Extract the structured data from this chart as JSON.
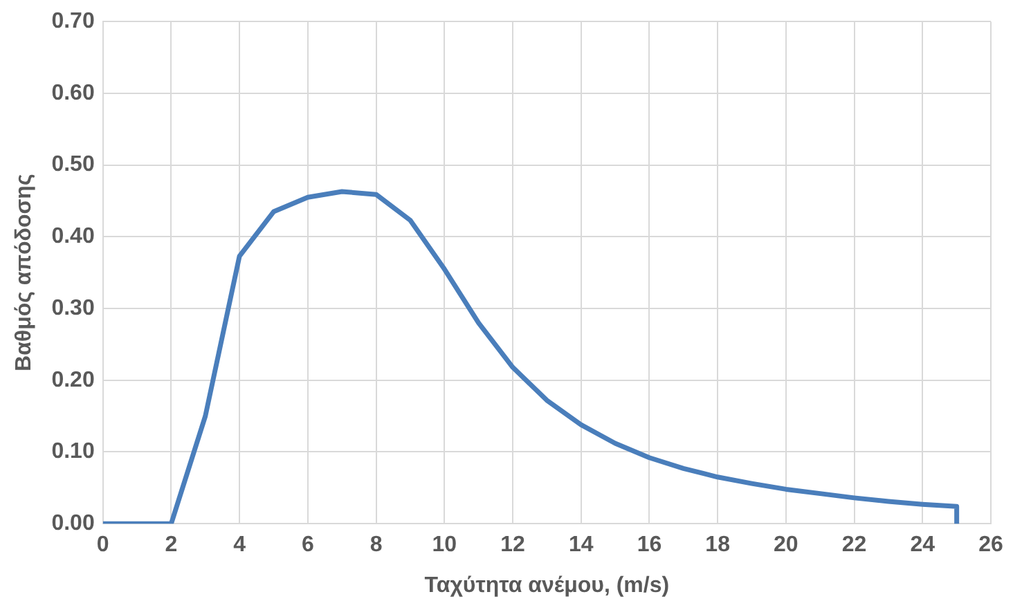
{
  "chart_data": {
    "type": "line",
    "xlabel": "Ταχύτητα ανέμου, (m/s)",
    "ylabel": "Βαθμός απόδοσης",
    "x": [
      0,
      1,
      2,
      3,
      4,
      5,
      6,
      7,
      8,
      9,
      10,
      11,
      12,
      13,
      14,
      15,
      16,
      17,
      18,
      19,
      20,
      21,
      22,
      23,
      24,
      25,
      25
    ],
    "series": [
      {
        "color": "#4a7ebb",
        "values": [
          0,
          0,
          0,
          0.15,
          0.373,
          0.435,
          0.455,
          0.463,
          0.459,
          0.423,
          0.355,
          0.28,
          0.218,
          0.172,
          0.138,
          0.112,
          0.092,
          0.077,
          0.065,
          0.056,
          0.048,
          0.042,
          0.036,
          0.031,
          0.027,
          0.024,
          0
        ]
      }
    ],
    "xlim": [
      0,
      26
    ],
    "xticks": [
      0,
      2,
      4,
      6,
      8,
      10,
      12,
      14,
      16,
      18,
      20,
      22,
      24,
      26
    ],
    "ylim": [
      0,
      0.7
    ],
    "yticks": [
      {
        "value": 0,
        "label": "0.00"
      },
      {
        "value": 0.1,
        "label": "0.10"
      },
      {
        "value": 0.2,
        "label": "0.20"
      },
      {
        "value": 0.3,
        "label": "0.30"
      },
      {
        "value": 0.4,
        "label": "0.40"
      },
      {
        "value": 0.5,
        "label": "0.50"
      },
      {
        "value": 0.6,
        "label": "0.60"
      },
      {
        "value": 0.7,
        "label": "0.70"
      }
    ],
    "grid": true,
    "legend": false,
    "marker": "none",
    "line_style": "solid"
  }
}
